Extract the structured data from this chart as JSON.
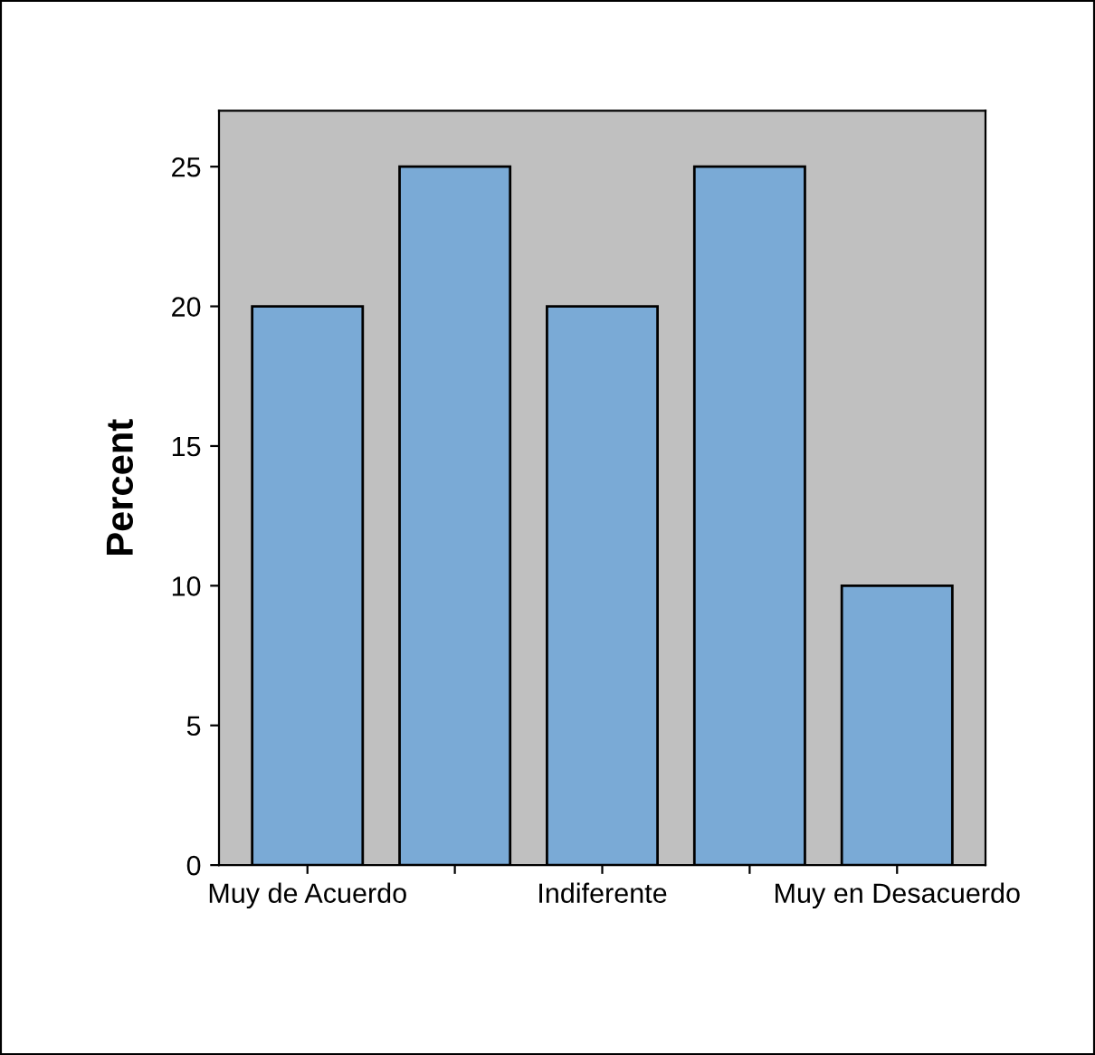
{
  "chart_data": {
    "type": "bar",
    "ylabel": "Percent",
    "categories": [
      "Muy de Acuerdo",
      null,
      "Indiferente",
      null,
      "Muy en Desacuerdo"
    ],
    "values": [
      20,
      25,
      20,
      25,
      10
    ],
    "color": "#7aaad6",
    "ylim": [
      0,
      27
    ],
    "yticks": [
      0,
      5,
      10,
      15,
      20,
      25
    ],
    "grid": false
  }
}
